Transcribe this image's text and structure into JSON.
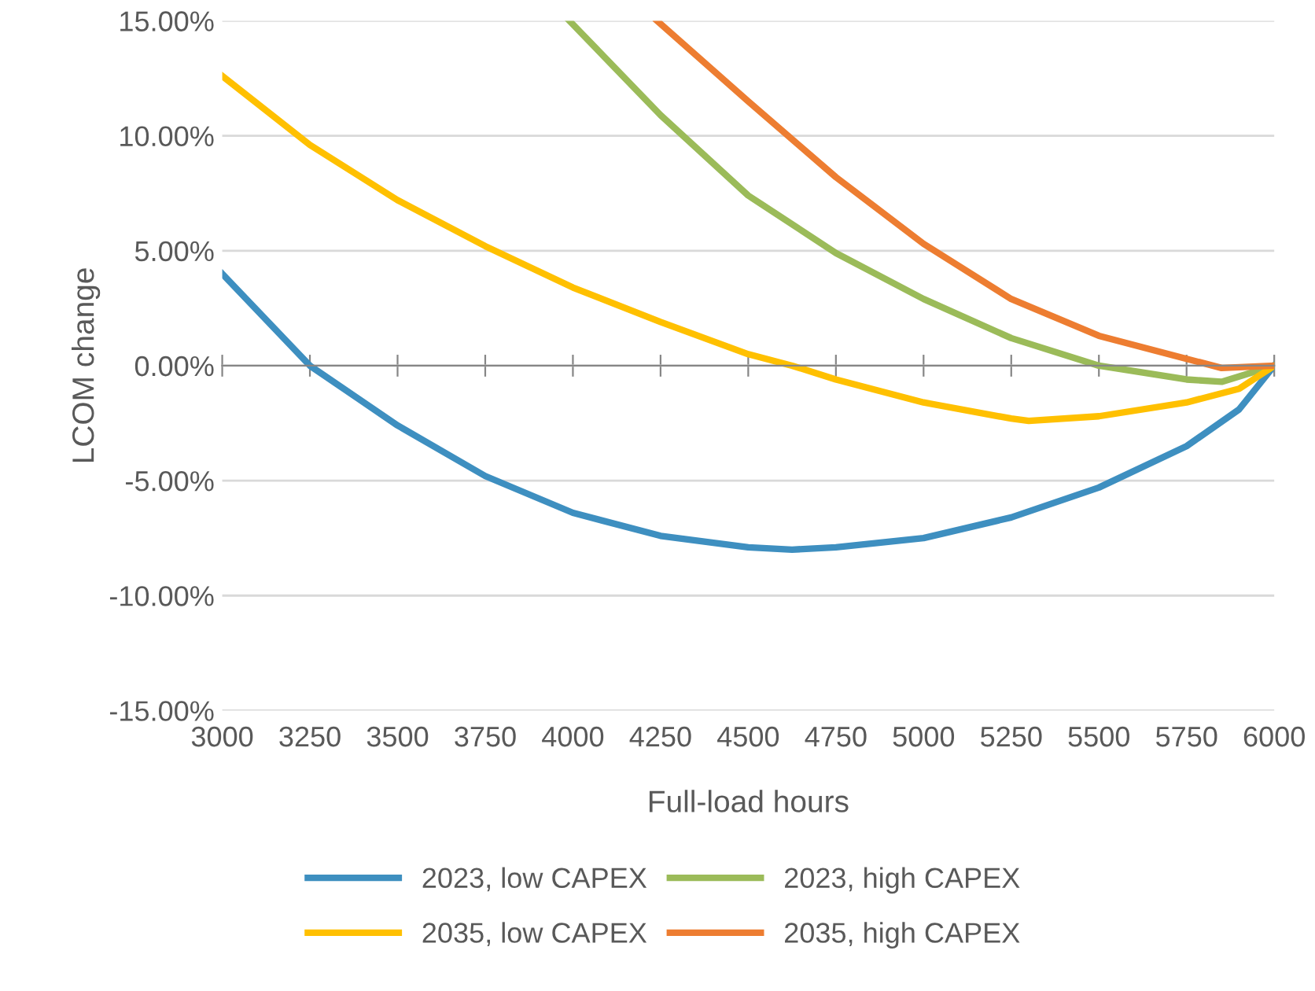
{
  "chart_data": {
    "type": "line",
    "xlabel": "Full-load hours",
    "ylabel": "LCOM change",
    "xlim": [
      3000,
      6000
    ],
    "xticks": [
      3000,
      3250,
      3500,
      3750,
      4000,
      4250,
      4500,
      4750,
      5000,
      5250,
      5500,
      5750,
      6000
    ],
    "ylim": [
      -15,
      15
    ],
    "yticks": [
      {
        "value": -15,
        "label": "-15.00%"
      },
      {
        "value": -10,
        "label": "-10.00%"
      },
      {
        "value": -5,
        "label": "-5.00%"
      },
      {
        "value": 0,
        "label": "0.00%"
      },
      {
        "value": 5,
        "label": "5.00%"
      },
      {
        "value": 10,
        "label": "10.00%"
      },
      {
        "value": 15,
        "label": "15.00%"
      }
    ],
    "grid": "y",
    "legend": "bottom",
    "line_style": "solid",
    "marker": "none",
    "series": [
      {
        "name": "2023, low CAPEX",
        "color": "#3e8fc0",
        "x": [
          3000,
          3250,
          3500,
          3750,
          4000,
          4250,
          4500,
          4625,
          4750,
          5000,
          5250,
          5500,
          5750,
          5900,
          6000
        ],
        "values": [
          4.0,
          0,
          -2.6,
          -4.8,
          -6.4,
          -7.4,
          -7.9,
          -8.0,
          -7.9,
          -7.5,
          -6.6,
          -5.3,
          -3.5,
          -1.9,
          0
        ]
      },
      {
        "name": "2023, high CAPEX",
        "color": "#9bbb59",
        "x": [
          3990,
          4250,
          4500,
          4750,
          5000,
          5250,
          5500,
          5750,
          5850,
          6000
        ],
        "values": [
          15,
          10.9,
          7.4,
          4.9,
          2.9,
          1.2,
          0,
          -0.6,
          -0.7,
          0
        ]
      },
      {
        "name": "2035, low CAPEX",
        "color": "#ffc000",
        "x": [
          3000,
          3250,
          3500,
          3750,
          4000,
          4250,
          4500,
          4625,
          4750,
          5000,
          5250,
          5300,
          5500,
          5750,
          5900,
          6000
        ],
        "values": [
          12.6,
          9.6,
          7.2,
          5.2,
          3.4,
          1.9,
          0.5,
          0,
          -0.6,
          -1.6,
          -2.3,
          -2.4,
          -2.2,
          -1.6,
          -1.0,
          0
        ]
      },
      {
        "name": "2035, high CAPEX",
        "color": "#ed7d31",
        "x": [
          4240,
          4500,
          4750,
          5000,
          5250,
          5500,
          5750,
          5850,
          6000
        ],
        "values": [
          15,
          11.5,
          8.2,
          5.3,
          2.9,
          1.3,
          0.3,
          -0.1,
          0
        ]
      }
    ]
  }
}
